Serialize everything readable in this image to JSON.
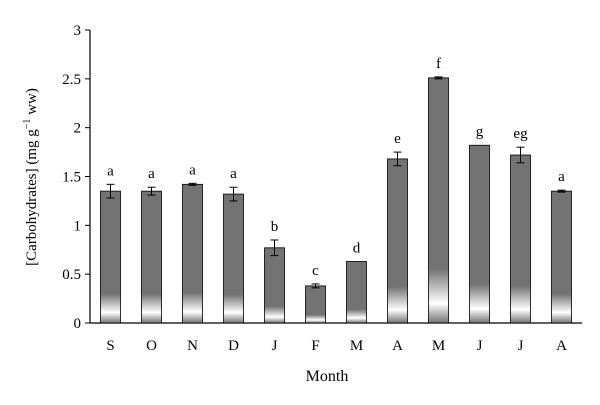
{
  "chart_data": {
    "type": "bar",
    "xlabel": "Month",
    "ylabel_main": "[Carbohydrates] (mg g",
    "ylabel_sup": "−1",
    "ylabel_tail": " ww)",
    "ylim": [
      0,
      3
    ],
    "yticks": [
      "0",
      "0.5",
      "1",
      "1.5",
      "2",
      "2.5",
      "3"
    ],
    "grid": false,
    "categories": [
      "S",
      "O",
      "N",
      "D",
      "J",
      "F",
      "M",
      "A",
      "M",
      "J",
      "J",
      "A"
    ],
    "values": [
      1.35,
      1.35,
      1.42,
      1.32,
      0.77,
      0.38,
      0.63,
      1.68,
      2.51,
      1.82,
      1.72,
      1.35
    ],
    "errors": [
      0.07,
      0.04,
      0.01,
      0.07,
      0.08,
      0.02,
      0.0,
      0.07,
      0.01,
      0.0,
      0.08,
      0.01
    ],
    "letters": [
      "a",
      "a",
      "a",
      "a",
      "b",
      "c",
      "d",
      "e",
      "f",
      "g",
      "eg",
      "a"
    ],
    "bar_color": "#737373"
  }
}
